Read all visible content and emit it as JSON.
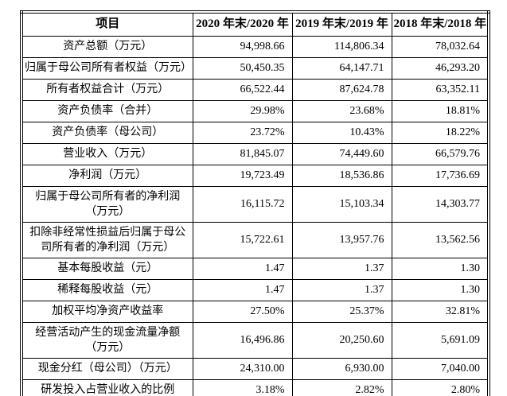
{
  "colors": {
    "background": "#ffffff",
    "border": "#000000",
    "text": "#000000"
  },
  "table": {
    "columns": [
      "项目",
      "2020 年末/2020 年",
      "2019 年末/2019 年",
      "2018 年末/2018 年"
    ],
    "rows": [
      {
        "label": "资产总额（万元）",
        "values": [
          "94,998.66",
          "114,806.34",
          "78,032.64"
        ]
      },
      {
        "label": "归属于母公司所有者权益（万元）",
        "values": [
          "50,450.35",
          "64,147.71",
          "46,293.20"
        ]
      },
      {
        "label": "所有者权益合计（万元）",
        "values": [
          "66,522.44",
          "87,624.78",
          "63,352.11"
        ]
      },
      {
        "label": "资产负债率（合并）",
        "values": [
          "29.98%",
          "23.68%",
          "18.81%"
        ]
      },
      {
        "label": "资产负债率（母公司）",
        "values": [
          "23.72%",
          "10.43%",
          "18.22%"
        ]
      },
      {
        "label": "营业收入（万元）",
        "values": [
          "81,845.07",
          "74,449.60",
          "66,579.76"
        ]
      },
      {
        "label": "净利润（万元）",
        "values": [
          "19,723.49",
          "18,536.86",
          "17,736.69"
        ]
      },
      {
        "label": "归属于母公司所有者的净利润（万元）",
        "values": [
          "16,115.72",
          "15,103.34",
          "14,303.77"
        ]
      },
      {
        "label": "扣除非经常性损益后归属于母公司所有者的净利润（万元）",
        "values": [
          "15,722.61",
          "13,957.76",
          "13,562.56"
        ]
      },
      {
        "label": "基本每股收益（元）",
        "values": [
          "1.47",
          "1.37",
          "1.30"
        ]
      },
      {
        "label": "稀释每股收益（元）",
        "values": [
          "1.47",
          "1.37",
          "1.30"
        ]
      },
      {
        "label": "加权平均净资产收益率",
        "values": [
          "27.50%",
          "25.37%",
          "32.81%"
        ]
      },
      {
        "label": "经营活动产生的现金流量净额（万元）",
        "values": [
          "16,496.86",
          "20,250.60",
          "5,691.09"
        ]
      },
      {
        "label": "现金分红（母公司）（万元）",
        "values": [
          "24,310.00",
          "6,930.00",
          "7,040.00"
        ]
      },
      {
        "label": "研发投入占营业收入的比例",
        "values": [
          "3.18%",
          "2.82%",
          "2.80%"
        ]
      }
    ]
  }
}
